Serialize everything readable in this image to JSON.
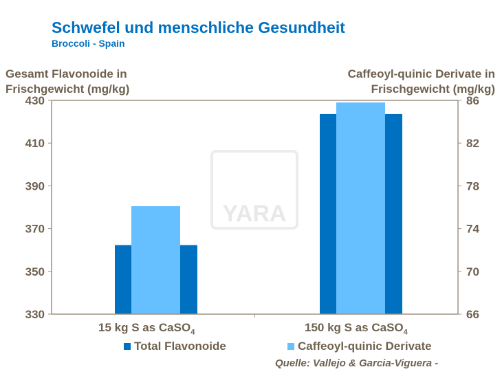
{
  "title": "Schwefel und menschliche Gesundheit",
  "subtitle": "Broccoli  - Spain",
  "source": "Quelle: Vallejo & Garcia-Viguera -",
  "watermark": "YARA",
  "chart_data": {
    "type": "bar",
    "categories": [
      "15 kg S as CaSO4",
      "150 kg S as CaSO4"
    ],
    "category_labels": [
      {
        "main": "15 kg S as CaSO",
        "sub": "4"
      },
      {
        "main": "150 kg S as CaSO",
        "sub": "4"
      }
    ],
    "ylabel": "Gesamt Flavonoide in Frischgewicht (mg/kg)",
    "ylabel_lines": [
      "Gesamt Flavonoide in",
      "Frischgewicht (mg/kg)"
    ],
    "y2label": "Caffeoyl-quinic Derivate in Frischgewicht (mg/kg)",
    "y2label_lines": [
      "Caffeoyl-quinic Derivate in",
      "Frischgewicht (mg/kg)"
    ],
    "ylim": [
      330,
      430
    ],
    "yticks": [
      330,
      350,
      370,
      390,
      410,
      430
    ],
    "y2lim": [
      66,
      86
    ],
    "y2ticks": [
      66,
      70,
      74,
      78,
      82,
      86
    ],
    "grid": false,
    "legend": "bottom",
    "series": [
      {
        "name": "Total Flavonoide",
        "axis": "left",
        "color": "#0070c0",
        "values": [
          362.3,
          423.6
        ]
      },
      {
        "name": "Caffeoyl-quinic Derivate",
        "axis": "right",
        "color": "#66bfff",
        "values": [
          76.1,
          85.8
        ]
      }
    ]
  }
}
